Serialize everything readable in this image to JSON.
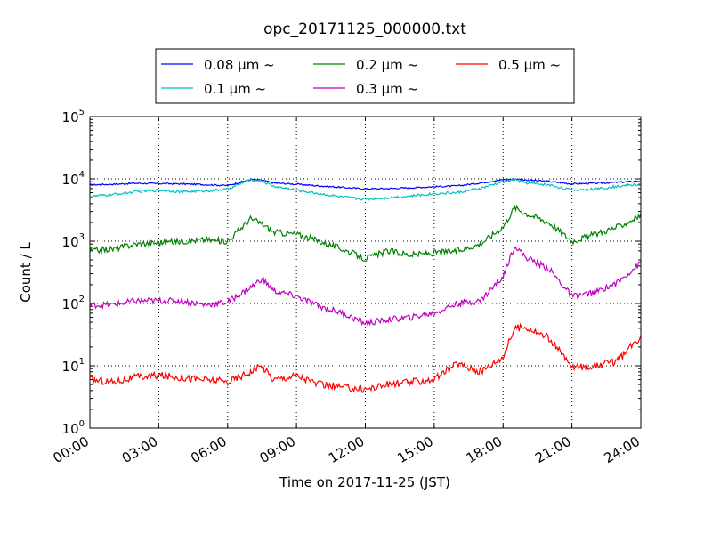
{
  "chart_data": {
    "type": "line",
    "title": "opc_20171125_000000.txt",
    "xlabel": "Time on 2017-11-25 (JST)",
    "ylabel": "Count / L",
    "yscale": "log",
    "xlim": [
      0,
      24
    ],
    "ylim": [
      1,
      100000
    ],
    "grid": true,
    "legend_position": "top, above plot",
    "x_ticks": [
      "00:00",
      "03:00",
      "06:00",
      "09:00",
      "12:00",
      "15:00",
      "18:00",
      "21:00",
      "24:00"
    ],
    "y_ticks": [
      {
        "base": "10",
        "exp": "0"
      },
      {
        "base": "10",
        "exp": "1"
      },
      {
        "base": "10",
        "exp": "2"
      },
      {
        "base": "10",
        "exp": "3"
      },
      {
        "base": "10",
        "exp": "4"
      },
      {
        "base": "10",
        "exp": "5"
      }
    ],
    "x_hours": [
      0,
      1,
      2,
      3,
      4,
      5,
      6,
      7,
      7.5,
      8,
      9,
      10,
      11,
      12,
      13,
      14,
      15,
      16,
      17,
      18,
      18.5,
      19,
      20,
      21,
      22,
      23,
      24
    ],
    "series": [
      {
        "name": "0.08 μm ~",
        "color": "#0000ff",
        "values": [
          8000,
          8200,
          8500,
          8400,
          8300,
          8100,
          7800,
          9800,
          9500,
          8600,
          8200,
          7700,
          7300,
          6900,
          7000,
          7200,
          7500,
          7700,
          8600,
          9700,
          10000,
          9600,
          9100,
          8300,
          8500,
          8800,
          9200
        ]
      },
      {
        "name": "0.1 μm ~",
        "color": "#00bfbf",
        "values": [
          5200,
          5600,
          6200,
          6600,
          6200,
          6400,
          6800,
          9800,
          9200,
          7600,
          6600,
          5800,
          5100,
          4700,
          5000,
          5300,
          5800,
          6000,
          7000,
          9000,
          9700,
          8600,
          8000,
          6600,
          6900,
          7600,
          8200
        ]
      },
      {
        "name": "0.2 μm ~",
        "color": "#008000",
        "values": [
          700,
          750,
          900,
          950,
          1000,
          1050,
          1000,
          2300,
          1900,
          1400,
          1300,
          1000,
          750,
          520,
          700,
          600,
          650,
          700,
          900,
          1700,
          3500,
          2800,
          2000,
          1000,
          1300,
          1700,
          2600
        ]
      },
      {
        "name": "0.3 μm ~",
        "color": "#bf00bf",
        "values": [
          95,
          95,
          110,
          110,
          110,
          95,
          105,
          180,
          250,
          160,
          130,
          90,
          70,
          48,
          55,
          60,
          70,
          100,
          110,
          270,
          850,
          550,
          360,
          130,
          150,
          220,
          450
        ]
      },
      {
        "name": "0.5 μm ~",
        "color": "#ff0000",
        "values": [
          6,
          5.5,
          6.5,
          7,
          6.5,
          6,
          5.5,
          8,
          10,
          6,
          7,
          5,
          4.5,
          4.2,
          5,
          5.5,
          6,
          11,
          8,
          14,
          40,
          42,
          28,
          9.5,
          10,
          12,
          30
        ]
      }
    ]
  }
}
